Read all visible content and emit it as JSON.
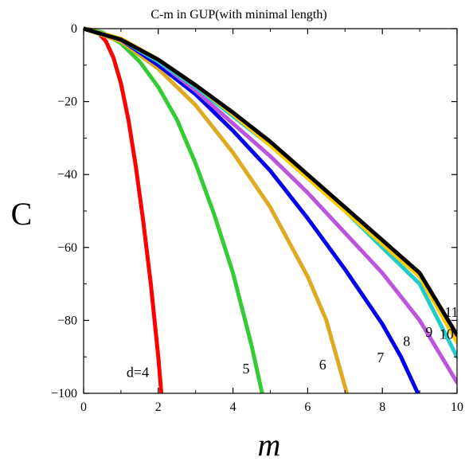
{
  "chart_data": {
    "type": "line",
    "title": "C-m in GUP(with minimal length)",
    "xlabel": "m",
    "ylabel": "C",
    "xlim": [
      0,
      10
    ],
    "ylim": [
      -100,
      0
    ],
    "x_ticks": [
      0,
      2,
      4,
      6,
      8,
      10
    ],
    "y_ticks": [
      0,
      -20,
      -40,
      -60,
      -80,
      -100
    ],
    "grid": false,
    "series": [
      {
        "name": "d=4",
        "color": "#ff0000",
        "x": [
          0,
          0.2,
          0.4,
          0.6,
          0.8,
          1.0,
          1.2,
          1.4,
          1.6,
          1.8,
          2.0,
          2.08
        ],
        "y": [
          0,
          -0.3,
          -1.2,
          -3.5,
          -8,
          -15,
          -25,
          -38,
          -53,
          -70,
          -90,
          -100
        ]
      },
      {
        "name": "5",
        "color": "#33cc33",
        "x": [
          0,
          0.5,
          1.0,
          1.5,
          2.0,
          2.5,
          3.0,
          3.5,
          4.0,
          4.5,
          4.78
        ],
        "y": [
          0,
          -1,
          -4,
          -9,
          -16,
          -25,
          -37,
          -51,
          -67,
          -87,
          -100
        ]
      },
      {
        "name": "6",
        "color": "#ddaa22",
        "x": [
          0,
          1,
          2,
          3,
          4,
          5,
          6,
          6.5,
          7.05
        ],
        "y": [
          0,
          -3.5,
          -11,
          -21,
          -34,
          -49,
          -68,
          -80,
          -100
        ]
      },
      {
        "name": "7",
        "color": "#0000ee",
        "x": [
          0,
          1,
          2,
          3,
          4,
          5,
          6,
          7,
          8,
          8.5,
          8.95
        ],
        "y": [
          0,
          -3,
          -10,
          -18,
          -28,
          -39,
          -52,
          -66,
          -81,
          -90,
          -100
        ]
      },
      {
        "name": "8",
        "color": "#bb55dd",
        "x": [
          0,
          1,
          2,
          3,
          4,
          5,
          6,
          7,
          8,
          9,
          10
        ],
        "y": [
          0,
          -3,
          -9,
          -17,
          -26,
          -35,
          -45,
          -56,
          -67,
          -80,
          -97
        ]
      },
      {
        "name": "9",
        "color": "#22cccc",
        "x": [
          0,
          1,
          2,
          3,
          4,
          5,
          6,
          7,
          8,
          9,
          10
        ],
        "y": [
          0,
          -3,
          -9,
          -16,
          -24,
          -32,
          -41,
          -50,
          -60,
          -70,
          -90
        ]
      },
      {
        "name": "10",
        "color": "#ffcc00",
        "x": [
          0,
          1,
          2,
          3,
          4,
          5,
          6,
          7,
          8,
          9,
          10
        ],
        "y": [
          0,
          -2.7,
          -8.5,
          -15.5,
          -23.5,
          -32,
          -41,
          -50,
          -59,
          -68,
          -86
        ]
      },
      {
        "name": "11",
        "color": "#000000",
        "x": [
          0,
          1,
          2,
          3,
          4,
          5,
          6,
          7,
          8,
          9,
          10
        ],
        "y": [
          0,
          -3,
          -8.5,
          -15.5,
          -23,
          -31,
          -40,
          -49,
          -58,
          -67,
          -84
        ]
      }
    ]
  }
}
